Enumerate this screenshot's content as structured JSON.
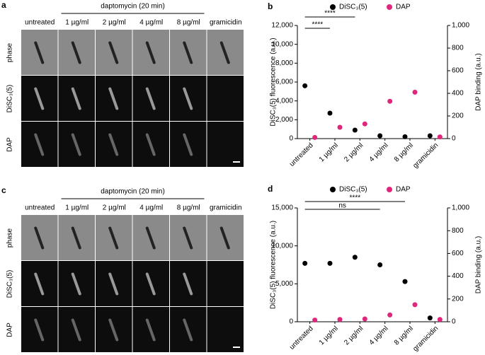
{
  "panels": [
    {
      "label": "a",
      "header": "daptomycin (20 min)",
      "columns": [
        "untreated",
        "1 µg/ml",
        "2 µg/ml",
        "4 µg/ml",
        "8 µg/ml",
        "gramicidin"
      ],
      "rows": [
        "phase",
        "DiSC₃(5)",
        "DAP"
      ]
    },
    {
      "label": "c",
      "header": "daptomycin (20 min)",
      "columns": [
        "untreated",
        "1 µg/ml",
        "2 µg/ml",
        "4 µg/ml",
        "8 µg/ml",
        "gramicidin"
      ],
      "rows": [
        "phase",
        "DiSC₃(5)",
        "DAP"
      ]
    }
  ],
  "chart_data": [
    {
      "type": "scatter",
      "label": "b",
      "categories": [
        "untreated",
        "1 µg/ml",
        "2 µg/ml",
        "4 µg/ml",
        "8 µg/ml",
        "gramicidin"
      ],
      "series": [
        {
          "name": "DiSC₃(5)",
          "color": "#000000",
          "values": [
            5600,
            2700,
            900,
            300,
            200,
            300
          ]
        },
        {
          "name": "DAP",
          "color": "#e0267a",
          "axis": "y2",
          "values": [
            10,
            100,
            130,
            330,
            410,
            15
          ]
        }
      ],
      "ylabel": "DiSC₃(5) fluorescence (a.u.)",
      "y2label": "DAP binding (a.u.)",
      "ylim": [
        0,
        12000
      ],
      "yticks": [
        0,
        {
          "value": 2000,
          "label": "2,000"
        },
        {
          "value": 4000,
          "label": "4,000"
        },
        {
          "value": 6000,
          "label": "6,000"
        },
        {
          "value": 8000,
          "label": "8,000"
        },
        {
          "value": 10000,
          "label": "10,000"
        },
        {
          "value": 12000,
          "label": "12,000"
        }
      ],
      "y2lim": [
        0,
        1000
      ],
      "y2ticks": [
        0,
        200,
        400,
        600,
        800,
        {
          "value": 1000,
          "label": "1,000"
        }
      ],
      "annotations": [
        "****",
        "****"
      ]
    },
    {
      "type": "scatter",
      "label": "d",
      "categories": [
        "untreated",
        "1 µg/ml",
        "2 µg/ml",
        "4 µg/ml",
        "8 µg/ml",
        "gramicidin"
      ],
      "series": [
        {
          "name": "DiSC₃(5)",
          "color": "#000000",
          "values": [
            7700,
            7700,
            8500,
            7500,
            5300,
            500
          ]
        },
        {
          "name": "DAP",
          "color": "#e0267a",
          "axis": "y2",
          "values": [
            15,
            20,
            25,
            60,
            150,
            20
          ]
        }
      ],
      "ylabel": "DiSC₃(5) fluorescence (a.u.)",
      "y2label": "DAP binding (a.u.)",
      "ylim": [
        0,
        15000
      ],
      "yticks": [
        0,
        {
          "value": 5000,
          "label": "5,000"
        },
        {
          "value": 10000,
          "label": "10,000"
        },
        {
          "value": 15000,
          "label": "15,000"
        }
      ],
      "y2lim": [
        0,
        1000
      ],
      "y2ticks": [
        0,
        200,
        400,
        600,
        800,
        {
          "value": 1000,
          "label": "1,000"
        }
      ],
      "annotations": [
        "ns",
        "****"
      ]
    }
  ]
}
